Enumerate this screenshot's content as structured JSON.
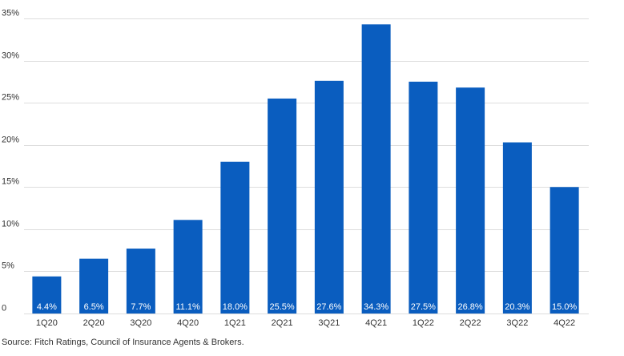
{
  "chart_data": {
    "type": "bar",
    "categories": [
      "1Q20",
      "2Q20",
      "3Q20",
      "4Q20",
      "1Q21",
      "2Q21",
      "3Q21",
      "4Q21",
      "1Q22",
      "2Q22",
      "3Q22",
      "4Q22"
    ],
    "values": [
      4.4,
      6.5,
      7.7,
      11.1,
      18.0,
      25.5,
      27.6,
      34.3,
      27.5,
      26.8,
      20.3,
      15.0
    ],
    "data_labels": [
      "4.4%",
      "6.5%",
      "7.7%",
      "11.1%",
      "18.0%",
      "25.5%",
      "27.6%",
      "34.3%",
      "27.5%",
      "26.8%",
      "20.3%",
      "15.0%"
    ],
    "y_ticks": [
      0,
      5,
      10,
      15,
      20,
      25,
      30,
      35
    ],
    "y_tick_labels": [
      "0",
      "5%",
      "10%",
      "15%",
      "20%",
      "25%",
      "30%",
      "35%"
    ],
    "ylim": [
      0,
      35
    ],
    "grid": true,
    "legend": "none",
    "bar_color": "#0a5dbf",
    "grid_color": "#dddddd"
  },
  "source": "Source: Fitch Ratings, Council of Insurance Agents & Brokers."
}
